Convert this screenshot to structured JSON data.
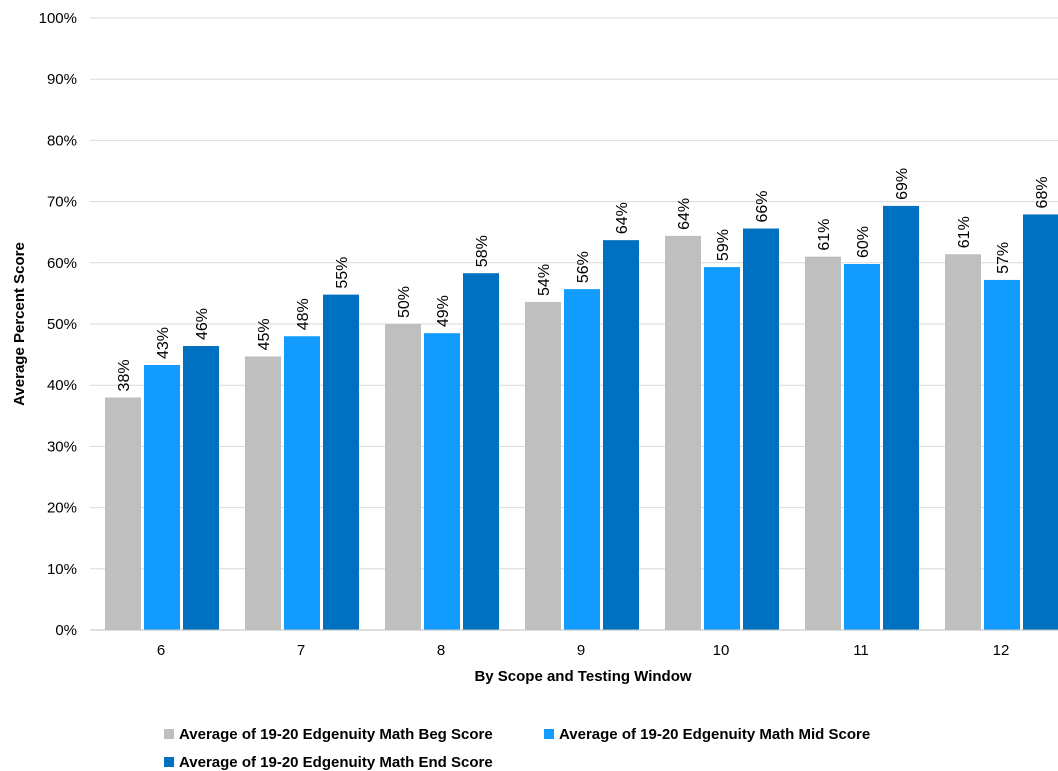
{
  "chart_data": {
    "type": "bar",
    "title": "",
    "xlabel": "By Scope and Testing Window",
    "ylabel": "Average Percent Score",
    "categories": [
      "6",
      "7",
      "8",
      "9",
      "10",
      "11",
      "12"
    ],
    "ylim": [
      0,
      100
    ],
    "yticks": [
      "0%",
      "10%",
      "20%",
      "30%",
      "40%",
      "50%",
      "60%",
      "70%",
      "80%",
      "90%",
      "100%"
    ],
    "grid": true,
    "legend_position": "bottom",
    "series": [
      {
        "name": "Average of 19-20 Edgenuity Math Beg Score",
        "color": "#bfbfbf",
        "values": [
          38,
          44.7,
          50,
          53.6,
          64.4,
          61,
          61.4
        ],
        "labels": [
          "38%",
          "45%",
          "50%",
          "54%",
          "64%",
          "61%",
          "61%"
        ]
      },
      {
        "name": "Average of 19-20 Edgenuity Math Mid Score",
        "color": "#139cff",
        "values": [
          43.3,
          48,
          48.5,
          55.7,
          59.3,
          59.8,
          57.2
        ],
        "labels": [
          "43%",
          "48%",
          "49%",
          "56%",
          "59%",
          "60%",
          "57%"
        ]
      },
      {
        "name": "Average of 19-20 Edgenuity Math End Score",
        "color": "#0070c0",
        "values": [
          46.4,
          54.8,
          58.3,
          63.7,
          65.6,
          69.3,
          67.9
        ],
        "labels": [
          "46%",
          "55%",
          "58%",
          "64%",
          "66%",
          "69%",
          "68%"
        ]
      }
    ]
  }
}
